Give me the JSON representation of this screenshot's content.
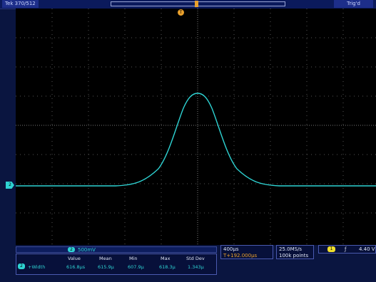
{
  "top_bar": {
    "acquisition_status": "Tek 370/512",
    "trigger_state": "Trig'd"
  },
  "indicators": {
    "trigger_position_marker": "T",
    "channel_ground_marker": "2"
  },
  "channel_readout": {
    "channel_number": "2",
    "scale": "500mV"
  },
  "measurements": {
    "columns": [
      "Value",
      "Mean",
      "Min",
      "Max",
      "Std Dev"
    ],
    "rows": [
      {
        "channel": "2",
        "label": "+Width",
        "values": [
          "616.8µs",
          "615.9µ",
          "607.9µ",
          "618.3µ",
          "1.343µ"
        ]
      }
    ]
  },
  "timebase": {
    "horizontal_scale": "400µs",
    "trigger_icon": "T",
    "delay": "+192.000µs"
  },
  "acquisition": {
    "sample_rate": "25.0MS/s",
    "record_length": "100k points"
  },
  "trigger": {
    "source": "1",
    "slope": "ƒ",
    "level": "4.40 V"
  },
  "colors": {
    "trace": "#2ed3d3",
    "graticule": "#000000",
    "trigger": "#e9a02c",
    "ch1": "#f0df2d"
  },
  "icons": {
    "slope": "rising-edge-icon"
  }
}
